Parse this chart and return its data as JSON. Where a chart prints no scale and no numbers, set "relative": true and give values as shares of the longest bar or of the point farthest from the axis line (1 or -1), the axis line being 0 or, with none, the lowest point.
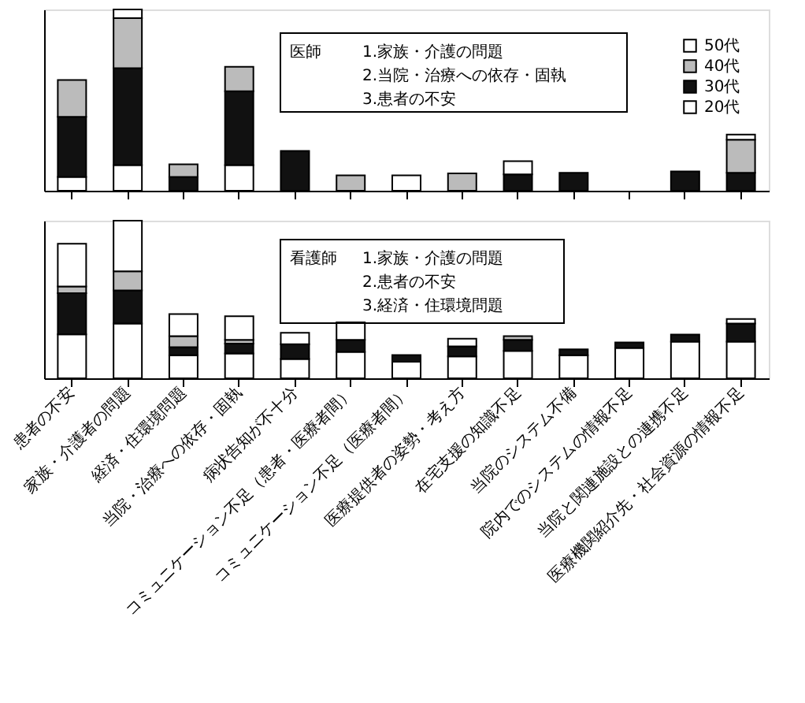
{
  "chart_data": [
    {
      "type": "bar",
      "stacked": true,
      "relative": true,
      "tick_labels": false,
      "legend": "top right",
      "grid": false,
      "categories": [
        null,
        null,
        null,
        null,
        null,
        null,
        null,
        null,
        null,
        null,
        null,
        null,
        null
      ],
      "series": [
        {
          "name": "20代",
          "color": "#ffffff",
          "values": [
            0.076,
            0.141,
            null,
            0.141,
            null,
            null,
            0.085,
            null,
            null,
            null,
            null,
            null,
            null
          ]
        },
        {
          "name": "30代",
          "color": "#111111",
          "values": [
            0.332,
            0.535,
            0.076,
            0.408,
            0.22,
            null,
            null,
            null,
            0.09,
            0.099,
            null,
            0.107,
            0.099
          ]
        },
        {
          "name": "40代",
          "color": "#bbbbbb",
          "values": [
            0.203,
            0.276,
            0.07,
            0.135,
            null,
            0.085,
            null,
            0.096,
            null,
            null,
            null,
            null,
            0.183
          ]
        },
        {
          "name": "50代",
          "color": "#ffffff",
          "values": [
            null,
            0.048,
            null,
            null,
            null,
            null,
            null,
            null,
            0.073,
            null,
            null,
            null,
            0.028
          ]
        }
      ],
      "annotations": [
        "医師",
        "1.家族・介護の問題",
        "2.当院・治療への依存・固執",
        "3.患者の不安"
      ]
    },
    {
      "type": "bar",
      "stacked": true,
      "relative": true,
      "tick_labels": "x",
      "grid": false,
      "categories": [
        "患者の不安",
        "家族・介護者の問題",
        "経済・住環境問題",
        "当院・治療への依存・固執",
        "病状告知が不十分",
        "コミュニケーション不足（患者・医療者間）",
        "コミュニケーション不足（医療者間）",
        "医療提供者の姿勢・考え方",
        "在宅支援の知識不足",
        "当院のシステム不備",
        "院内でのシステムの情報不足",
        "当院と関連施設との連携不足",
        "医療機関紹介先・社会資源の情報不足"
      ],
      "series": [
        {
          "color": "#ffffff",
          "values": [
            0.279,
            0.348,
            0.146,
            0.157,
            0.122,
            0.167,
            0.105,
            0.139,
            0.174,
            0.146,
            0.192,
            0.233,
            0.233
          ]
        },
        {
          "color": "#111111",
          "values": [
            0.261,
            0.209,
            0.052,
            0.063,
            0.094,
            0.077,
            0.042,
            0.063,
            0.07,
            0.038,
            0.035,
            0.045,
            0.115
          ]
        },
        {
          "color": "#bbbbbb",
          "values": [
            0.042,
            0.122,
            0.07,
            0.024,
            null,
            null,
            null,
            null,
            0.024,
            null,
            null,
            null,
            null
          ]
        },
        {
          "color": "#ffffff",
          "values": [
            0.272,
            0.321,
            0.139,
            0.15,
            0.073,
            0.111,
            null,
            0.049,
            null,
            null,
            null,
            null,
            0.028
          ]
        }
      ],
      "annotations": [
        "看護師",
        "1.家族・介護の問題",
        "2.患者の不安",
        "3.経済・住環境問題"
      ]
    }
  ]
}
